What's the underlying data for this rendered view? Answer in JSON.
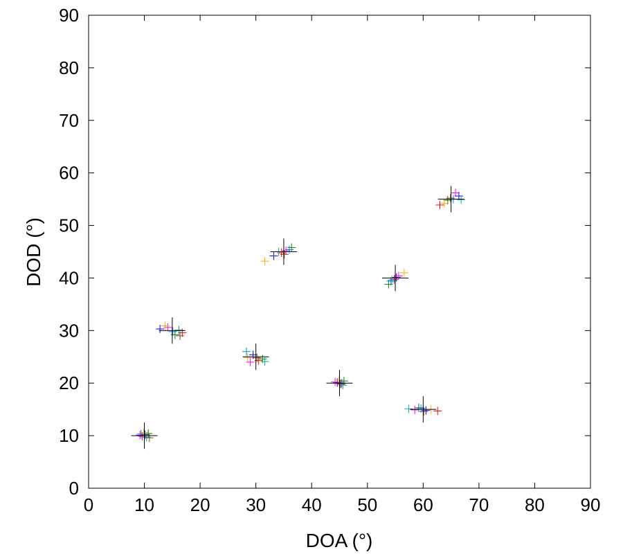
{
  "chart_data": {
    "type": "scatter",
    "title": "",
    "xlabel": "DOA (°)",
    "ylabel": "DOD (°)",
    "xlim": [
      0,
      90
    ],
    "ylim": [
      0,
      90
    ],
    "xticks": [
      0,
      10,
      20,
      30,
      40,
      50,
      60,
      70,
      80,
      90
    ],
    "yticks": [
      0,
      10,
      20,
      30,
      40,
      50,
      60,
      70,
      80,
      90
    ],
    "grid": false,
    "legend": "none",
    "marker": "plus",
    "true_color": "#000000",
    "true_points": [
      {
        "x": 10,
        "y": 10
      },
      {
        "x": 15,
        "y": 30
      },
      {
        "x": 30,
        "y": 25
      },
      {
        "x": 35,
        "y": 45
      },
      {
        "x": 45,
        "y": 20
      },
      {
        "x": 55,
        "y": 40
      },
      {
        "x": 60,
        "y": 15
      },
      {
        "x": 65,
        "y": 55
      }
    ],
    "series": [
      {
        "color": "#0000ff",
        "points": [
          {
            "x": 10.1,
            "y": 10.2
          },
          {
            "x": 12.8,
            "y": 30.3
          },
          {
            "x": 29.5,
            "y": 25.4
          },
          {
            "x": 33.2,
            "y": 44.2
          },
          {
            "x": 44.6,
            "y": 20.1
          },
          {
            "x": 55.2,
            "y": 40.1
          },
          {
            "x": 60.5,
            "y": 14.8
          },
          {
            "x": 66.4,
            "y": 55.6
          }
        ]
      },
      {
        "color": "#ff0000",
        "points": [
          {
            "x": 9.6,
            "y": 9.9
          },
          {
            "x": 16.8,
            "y": 29.6
          },
          {
            "x": 30.5,
            "y": 24.3
          },
          {
            "x": 34.6,
            "y": 44.8
          },
          {
            "x": 45.3,
            "y": 19.8
          },
          {
            "x": 54.8,
            "y": 39.7
          },
          {
            "x": 62.6,
            "y": 14.7
          },
          {
            "x": 63.0,
            "y": 53.9
          }
        ]
      },
      {
        "color": "#008000",
        "points": [
          {
            "x": 10.7,
            "y": 10.4
          },
          {
            "x": 15.5,
            "y": 29.2
          },
          {
            "x": 31.2,
            "y": 24.6
          },
          {
            "x": 36.4,
            "y": 45.8
          },
          {
            "x": 45.8,
            "y": 20.4
          },
          {
            "x": 53.8,
            "y": 38.8
          },
          {
            "x": 59.2,
            "y": 15.3
          },
          {
            "x": 64.4,
            "y": 54.8
          }
        ]
      },
      {
        "color": "#ff00ff",
        "points": [
          {
            "x": 9.2,
            "y": 10.1
          },
          {
            "x": 14.2,
            "y": 30.6
          },
          {
            "x": 29.0,
            "y": 24.0
          },
          {
            "x": 35.4,
            "y": 45.2
          },
          {
            "x": 44.2,
            "y": 20.2
          },
          {
            "x": 55.6,
            "y": 40.4
          },
          {
            "x": 58.5,
            "y": 14.9
          },
          {
            "x": 65.8,
            "y": 56.2
          }
        ]
      },
      {
        "color": "#00aaaa",
        "points": [
          {
            "x": 10.4,
            "y": 9.7
          },
          {
            "x": 16.2,
            "y": 30.1
          },
          {
            "x": 31.6,
            "y": 24.1
          },
          {
            "x": 34.1,
            "y": 45.0
          },
          {
            "x": 45.6,
            "y": 19.6
          },
          {
            "x": 54.4,
            "y": 39.6
          },
          {
            "x": 57.4,
            "y": 15.1
          },
          {
            "x": 66.8,
            "y": 54.9
          }
        ]
      },
      {
        "color": "#ffaa00",
        "points": [
          {
            "x": 9.9,
            "y": 10.6
          },
          {
            "x": 13.7,
            "y": 30.9
          },
          {
            "x": 28.5,
            "y": 24.9
          },
          {
            "x": 31.6,
            "y": 43.2
          },
          {
            "x": 44.9,
            "y": 20.6
          },
          {
            "x": 56.6,
            "y": 41.0
          },
          {
            "x": 61.4,
            "y": 15.0
          },
          {
            "x": 63.8,
            "y": 54.2
          }
        ]
      },
      {
        "color": "#8b4513",
        "points": [
          {
            "x": 10.9,
            "y": 9.6
          },
          {
            "x": 16.4,
            "y": 29.0
          },
          {
            "x": 30.2,
            "y": 24.8
          },
          {
            "x": 35.1,
            "y": 44.5
          },
          {
            "x": 45.1,
            "y": 19.9
          },
          {
            "x": 55.0,
            "y": 40.0
          },
          {
            "x": 60.1,
            "y": 14.6
          },
          {
            "x": 64.9,
            "y": 55.2
          }
        ]
      },
      {
        "color": "#0080ff",
        "points": [
          {
            "x": 9.4,
            "y": 10.3
          },
          {
            "x": 15.1,
            "y": 29.8
          },
          {
            "x": 28.3,
            "y": 26.0
          },
          {
            "x": 36.0,
            "y": 45.4
          },
          {
            "x": 45.4,
            "y": 20.0
          },
          {
            "x": 54.2,
            "y": 39.4
          },
          {
            "x": 59.6,
            "y": 15.2
          },
          {
            "x": 65.4,
            "y": 55.0
          }
        ]
      }
    ]
  }
}
